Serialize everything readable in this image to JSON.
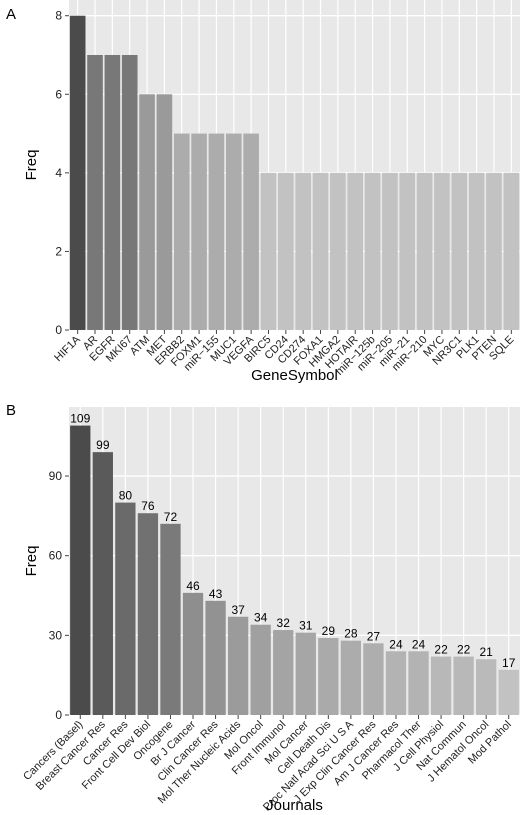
{
  "panels": {
    "a_letter": "A",
    "b_letter": "B"
  },
  "chart_data": [
    {
      "type": "bar",
      "panel": "A",
      "xlabel": "GeneSymbol",
      "ylabel": "Freq",
      "ylim": [
        0,
        8.4
      ],
      "yticks": [
        0,
        2,
        4,
        6,
        8
      ],
      "grid": true,
      "categories": [
        "HIF1A",
        "AR",
        "EGFR",
        "MKI67",
        "ATM",
        "MET",
        "ERBB2",
        "FOXM1",
        "miR−155",
        "MUC1",
        "VEGFA",
        "BIRC5",
        "CD24",
        "CD274",
        "FOXA1",
        "HMGA2",
        "HOTAIR",
        "miR−125b",
        "miR−205",
        "miR−21",
        "miR−210",
        "MYC",
        "NR3C1",
        "PLK1",
        "PTEN",
        "SQLE"
      ],
      "values": [
        8,
        7,
        7,
        7,
        6,
        6,
        5,
        5,
        5,
        5,
        5,
        4,
        4,
        4,
        4,
        4,
        4,
        4,
        4,
        4,
        4,
        4,
        4,
        4,
        4,
        4
      ],
      "colors": [
        "#4b4b4b",
        "#787878",
        "#787878",
        "#787878",
        "#9a9a9a",
        "#9a9a9a",
        "#acacac",
        "#acacac",
        "#acacac",
        "#acacac",
        "#acacac",
        "#c2c2c2",
        "#c2c2c2",
        "#c2c2c2",
        "#c2c2c2",
        "#c2c2c2",
        "#c2c2c2",
        "#c2c2c2",
        "#c2c2c2",
        "#c2c2c2",
        "#c2c2c2",
        "#c2c2c2",
        "#c2c2c2",
        "#c2c2c2",
        "#c2c2c2",
        "#c2c2c2"
      ]
    },
    {
      "type": "bar",
      "panel": "B",
      "xlabel": "Journals",
      "ylabel": "Freq",
      "ylim": [
        0,
        116
      ],
      "yticks": [
        0,
        30,
        60,
        90
      ],
      "grid": true,
      "categories": [
        "Cancers (Basel)",
        "Breast Cancer Res",
        "Cancer Res",
        "Front Cell Dev Biol",
        "Oncogene",
        "Br J Cancer",
        "Clin Cancer Res",
        "Mol Ther Nucleic Acids",
        "Mol Oncol",
        "Front Immunol",
        "Mol Cancer",
        "Cell Death Dis",
        "Proc Natl Acad Sci U S A",
        "J Exp Clin Cancer Res",
        "Am J Cancer Res",
        "Pharmacol Ther",
        "J Cell Physiol",
        "Nat Commun",
        "J Hematol Oncol",
        "Mod Pathol"
      ],
      "values": [
        109,
        99,
        80,
        76,
        72,
        46,
        43,
        37,
        34,
        32,
        31,
        29,
        28,
        27,
        24,
        24,
        22,
        22,
        21,
        17
      ],
      "data_labels": [
        "109",
        "99",
        "80",
        "76",
        "72",
        "46",
        "43",
        "37",
        "34",
        "32",
        "31",
        "29",
        "28",
        "27",
        "24",
        "24",
        "22",
        "22",
        "21",
        "17"
      ],
      "colors": [
        "#4b4b4b",
        "#5a5a5a",
        "#6a6a6a",
        "#717171",
        "#7a7a7a",
        "#8e8e8e",
        "#929292",
        "#9b9b9b",
        "#a0a0a0",
        "#a4a4a4",
        "#a6a6a6",
        "#aaaaaa",
        "#acacac",
        "#aeaeae",
        "#b3b3b3",
        "#b3b3b3",
        "#b8b8b8",
        "#b8b8b8",
        "#bababa",
        "#c2c2c2"
      ]
    }
  ]
}
